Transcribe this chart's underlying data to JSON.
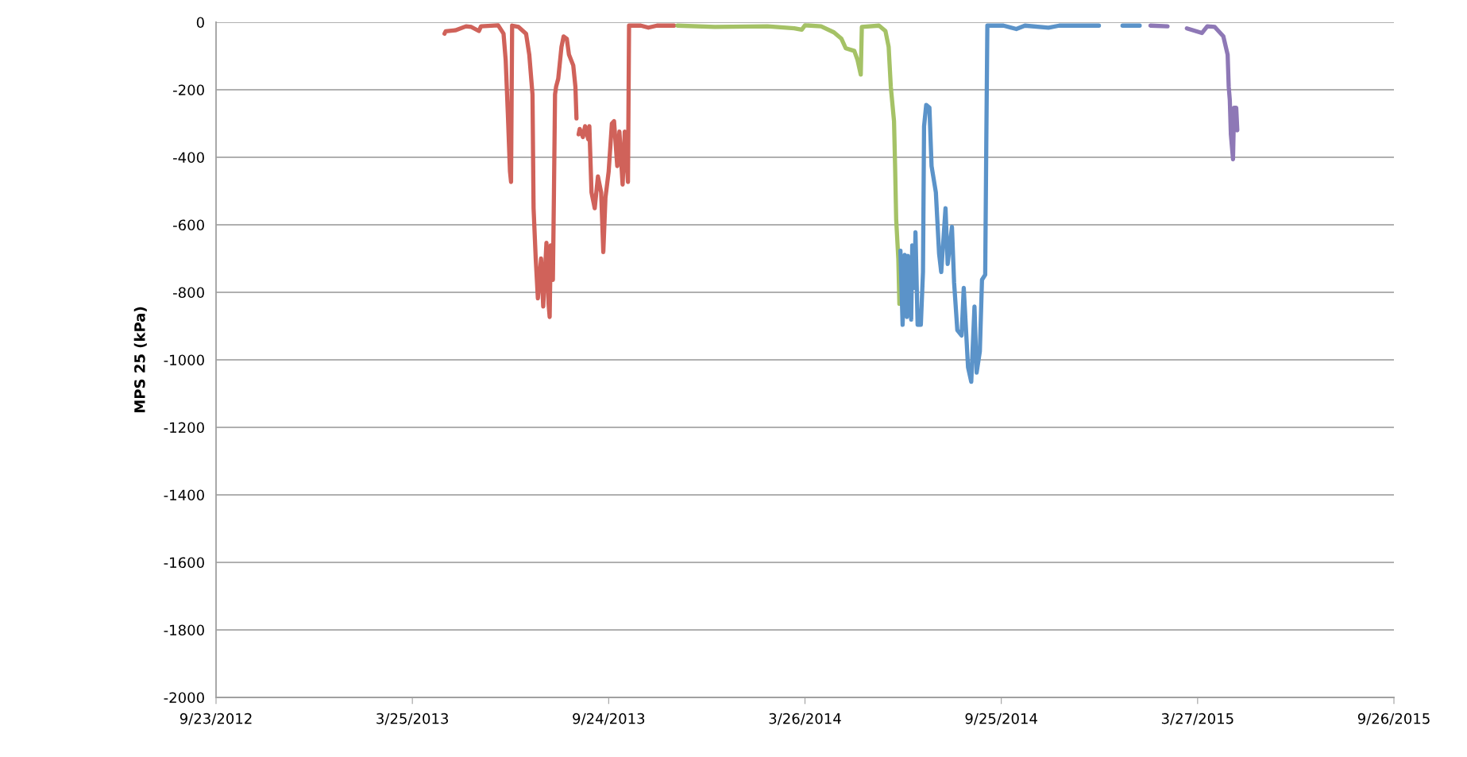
{
  "chart_data": {
    "type": "line",
    "ylabel": "MPS 25 (kPa)",
    "xlim": [
      "2012-09-23",
      "2015-09-26"
    ],
    "xticks": [
      {
        "value": "2012-09-23",
        "label": "9/23/2012"
      },
      {
        "value": "2013-03-25",
        "label": "3/25/2013"
      },
      {
        "value": "2013-09-24",
        "label": "9/24/2013"
      },
      {
        "value": "2014-03-26",
        "label": "3/26/2014"
      },
      {
        "value": "2014-09-25",
        "label": "9/25/2014"
      },
      {
        "value": "2015-03-27",
        "label": "3/27/2015"
      },
      {
        "value": "2015-09-26",
        "label": "9/26/2015"
      }
    ],
    "ylim": [
      -2000,
      0
    ],
    "yticks": [
      -2000,
      -1800,
      -1600,
      -1400,
      -1200,
      -1000,
      -800,
      -600,
      -400,
      -200,
      0
    ],
    "grid": "y",
    "marker": "none",
    "line_style": "solid",
    "series": [
      {
        "color": "#d0625a",
        "x": [
          "2013-04-24",
          "2013-04-25",
          "2013-05-04",
          "2013-05-14",
          "2013-05-19",
          "2013-05-26",
          "2013-05-28",
          "2013-06-13",
          "2013-06-18",
          "2013-06-20",
          "2013-06-22",
          "2013-06-24",
          "2013-06-25",
          "2013-06-26",
          "2013-07-02",
          "2013-07-09",
          "2013-07-12",
          "2013-07-15",
          "2013-07-16",
          "2013-07-18",
          "2013-07-20",
          "2013-07-23",
          "2013-07-25",
          "2013-07-28",
          "2013-07-30",
          "2013-07-31",
          "2013-08-01",
          "2013-08-03",
          "2013-08-04",
          "2013-08-05",
          "2013-08-06",
          "2013-08-08",
          "2013-08-11",
          "2013-08-13",
          "2013-08-16",
          "2013-08-18",
          "2013-08-22",
          "2013-08-24",
          "2013-08-25",
          "2013-08-26",
          "2013-08-27",
          "2013-08-28",
          "2013-08-31",
          "2013-09-02",
          "2013-09-05",
          "2013-09-06",
          "2013-09-08",
          "2013-09-11",
          "2013-09-14",
          "2013-09-17",
          "2013-09-19",
          "2013-09-21",
          "2013-09-24",
          "2013-09-27",
          "2013-09-29",
          "2013-10-02",
          "2013-10-04",
          "2013-10-07",
          "2013-10-09",
          "2013-10-12",
          "2013-10-13",
          "2013-10-24",
          "2013-10-31",
          "2013-11-08",
          "2013-11-24"
        ],
        "values": [
          -34,
          -27,
          -24,
          -12,
          -14,
          -26,
          -12,
          -9,
          -34,
          -112,
          -269,
          -442,
          -473,
          -10,
          -14,
          -34,
          -96,
          -214,
          -551,
          -700,
          -818,
          -700,
          -842,
          -653,
          -835,
          -873,
          -661,
          -763,
          -504,
          -214,
          -191,
          -167,
          -73,
          -42,
          -49,
          -96,
          -128,
          -191,
          -285,
          null,
          -332,
          -316,
          -340,
          -308,
          -347,
          -308,
          -504,
          -551,
          -457,
          -504,
          -681,
          -520,
          -442,
          -300,
          -293,
          -426,
          -324,
          -481,
          -324,
          -473,
          -10,
          -10,
          -16,
          -10,
          -10
        ]
      },
      {
        "color": "#a5c266",
        "x": [
          "2013-11-27",
          "2014-01-01",
          "2014-02-19",
          "2014-03-16",
          "2014-03-23",
          "2014-03-26",
          "2014-04-10",
          "2014-04-22",
          "2014-04-29",
          "2014-05-03",
          "2014-05-11",
          "2014-05-14",
          "2014-05-17",
          "2014-05-18",
          "2014-06-03",
          "2014-06-09",
          "2014-06-12",
          "2014-06-14",
          "2014-06-17",
          "2014-06-18",
          "2014-06-19",
          "2014-06-21",
          "2014-06-22"
        ],
        "values": [
          -10,
          -14,
          -12,
          -18,
          -22,
          -9,
          -12,
          -30,
          -49,
          -77,
          -85,
          -112,
          -155,
          -14,
          -10,
          -26,
          -73,
          -191,
          -293,
          -426,
          -583,
          -700,
          -834
        ]
      },
      {
        "color": "#5b93c9",
        "x": [
          "2014-06-23",
          "2014-06-25",
          "2014-06-27",
          "2014-06-29",
          "2014-06-30",
          "2014-07-03",
          "2014-07-04",
          "2014-07-06",
          "2014-07-07",
          "2014-07-09",
          "2014-07-12",
          "2014-07-14",
          "2014-07-15",
          "2014-07-17",
          "2014-07-20",
          "2014-07-22",
          "2014-07-26",
          "2014-07-29",
          "2014-07-31",
          "2014-08-04",
          "2014-08-06",
          "2014-08-10",
          "2014-08-12",
          "2014-08-15",
          "2014-08-19",
          "2014-08-21",
          "2014-08-25",
          "2014-08-28",
          "2014-08-31",
          "2014-09-02",
          "2014-09-05",
          "2014-09-07",
          "2014-09-10",
          "2014-09-11",
          "2014-09-12",
          "2014-09-27",
          "2014-10-09",
          "2014-10-17",
          "2014-11-08",
          "2014-11-18",
          "2014-12-25",
          "2015-01-04",
          "2015-01-16",
          "2015-02-01"
        ],
        "values": [
          -677,
          -896,
          -689,
          -873,
          -692,
          -881,
          -661,
          -787,
          -622,
          -896,
          -896,
          -740,
          -308,
          -245,
          -253,
          -426,
          -504,
          -685,
          -740,
          -551,
          -716,
          -606,
          -771,
          -912,
          -928,
          -787,
          -1022,
          -1065,
          -842,
          -1038,
          -975,
          -763,
          -748,
          -363,
          -10,
          -10,
          -20,
          -10,
          -16,
          -10,
          -10,
          null,
          -10,
          -10
        ]
      },
      {
        "color": "#8e78b6",
        "x": [
          "2015-02-11",
          "2015-02-27",
          "2015-03-07",
          "2015-03-17",
          "2015-03-31",
          "2015-04-05",
          "2015-04-12",
          "2015-04-20",
          "2015-04-24",
          "2015-04-25",
          "2015-04-26",
          "2015-04-27",
          "2015-04-29",
          "2015-04-30",
          "2015-05-02",
          "2015-05-03"
        ],
        "values": [
          -10,
          -12,
          null,
          -18,
          -32,
          -12,
          -14,
          -42,
          -96,
          -191,
          -230,
          -332,
          -406,
          -253,
          -253,
          -320
        ]
      }
    ]
  }
}
